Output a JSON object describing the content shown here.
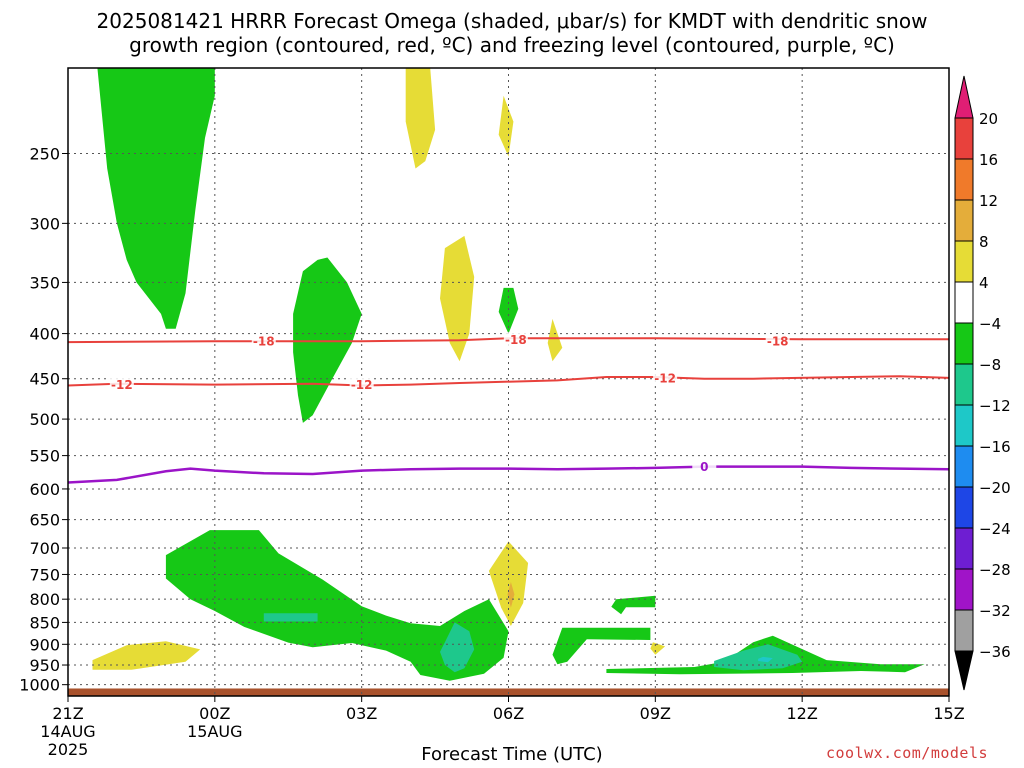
{
  "title": {
    "line1": "2025081421 HRRR Forecast Omega (shaded, μbar/s) for KMDT with dendritic snow",
    "line2": "growth region (contoured, red, ºC) and freezing level (contoured, purple, ºC)"
  },
  "x_axis_label": "Forecast Time (UTC)",
  "credit": "coolwx.com/models",
  "chart_data": {
    "type": "time-height cross section",
    "y_axis": {
      "label": "",
      "scale": "pressure",
      "range_hPa": [
        200,
        1030
      ],
      "inverted": true,
      "ticks": [
        250,
        300,
        350,
        400,
        450,
        500,
        550,
        600,
        650,
        700,
        750,
        800,
        850,
        900,
        950,
        1000
      ]
    },
    "x_axis": {
      "range_hours": [
        0,
        18
      ],
      "ticks": [
        {
          "h": 0,
          "label": "21Z",
          "sub1": "14AUG",
          "sub2": "2025"
        },
        {
          "h": 3,
          "label": "00Z",
          "sub1": "15AUG",
          "sub2": ""
        },
        {
          "h": 6,
          "label": "03Z",
          "sub1": "",
          "sub2": ""
        },
        {
          "h": 9,
          "label": "06Z",
          "sub1": "",
          "sub2": ""
        },
        {
          "h": 12,
          "label": "09Z",
          "sub1": "",
          "sub2": ""
        },
        {
          "h": 15,
          "label": "12Z",
          "sub1": "",
          "sub2": ""
        },
        {
          "h": 18,
          "label": "15Z",
          "sub1": "",
          "sub2": ""
        }
      ]
    },
    "grid": true,
    "colorbar": {
      "labels": [
        "20",
        "16",
        "12",
        "8",
        "4",
        "−4",
        "−8",
        "−12",
        "−16",
        "−20",
        "−24",
        "−28",
        "−32",
        "−36"
      ],
      "colors": [
        "#e01e74",
        "#e8413c",
        "#f07a2a",
        "#e4ad3a",
        "#e6dc36",
        "#ffffff",
        "#16c816",
        "#1ec88c",
        "#1ec8c8",
        "#1e8cf0",
        "#1e46e6",
        "#6e1ed2",
        "#a014c8",
        "#a0a0a0",
        "#000000"
      ]
    },
    "omega_regions": [
      {
        "level": "-4",
        "color": "#16c816",
        "points": [
          [
            0.6,
            200
          ],
          [
            3.0,
            200
          ],
          [
            3.0,
            215
          ],
          [
            2.8,
            240
          ],
          [
            2.6,
            290
          ],
          [
            2.4,
            360
          ],
          [
            2.2,
            395
          ],
          [
            2.0,
            395
          ],
          [
            1.9,
            380
          ],
          [
            1.4,
            350
          ],
          [
            1.2,
            330
          ],
          [
            1.0,
            300
          ],
          [
            0.8,
            260
          ],
          [
            0.6,
            200
          ]
        ]
      },
      {
        "level": "-4",
        "color": "#16c816",
        "points": [
          [
            5.1,
            330
          ],
          [
            5.3,
            328
          ],
          [
            5.7,
            350
          ],
          [
            6.0,
            380
          ],
          [
            5.8,
            410
          ],
          [
            5.4,
            450
          ],
          [
            5.0,
            495
          ],
          [
            4.8,
            505
          ],
          [
            4.7,
            470
          ],
          [
            4.6,
            420
          ],
          [
            4.6,
            380
          ],
          [
            4.8,
            340
          ],
          [
            5.1,
            330
          ]
        ]
      },
      {
        "level": "-4",
        "color": "#16c816",
        "points": [
          [
            8.9,
            355
          ],
          [
            9.1,
            355
          ],
          [
            9.2,
            375
          ],
          [
            9.0,
            400
          ],
          [
            8.8,
            378
          ],
          [
            8.9,
            355
          ]
        ]
      },
      {
        "level": "-4",
        "color": "#16c816",
        "points": [
          [
            2.0,
            713
          ],
          [
            2.9,
            668
          ],
          [
            3.9,
            668
          ],
          [
            4.3,
            710
          ],
          [
            5.2,
            760
          ],
          [
            6.0,
            815
          ],
          [
            6.5,
            835
          ],
          [
            7.0,
            852
          ],
          [
            7.6,
            858
          ],
          [
            8.1,
            825
          ],
          [
            8.6,
            800
          ],
          [
            9.0,
            870
          ],
          [
            8.9,
            932
          ],
          [
            8.5,
            972
          ],
          [
            7.8,
            990
          ],
          [
            7.2,
            975
          ],
          [
            7.0,
            942
          ],
          [
            6.5,
            915
          ],
          [
            5.8,
            897
          ],
          [
            5.0,
            907
          ],
          [
            4.5,
            896
          ],
          [
            3.6,
            860
          ],
          [
            3.0,
            825
          ],
          [
            2.5,
            800
          ],
          [
            2.0,
            758
          ],
          [
            2.0,
            713
          ]
        ]
      },
      {
        "level": "-4",
        "color": "#16c816",
        "points": [
          [
            10.1,
            862
          ],
          [
            11.9,
            862
          ],
          [
            11.9,
            890
          ],
          [
            10.6,
            888
          ],
          [
            10.2,
            942
          ],
          [
            10.0,
            948
          ],
          [
            9.9,
            925
          ],
          [
            10.1,
            862
          ]
        ]
      },
      {
        "level": "-4",
        "color": "#16c816",
        "points": [
          [
            11.2,
            800
          ],
          [
            12.0,
            793
          ],
          [
            12.0,
            817
          ],
          [
            11.4,
            817
          ],
          [
            11.3,
            832
          ],
          [
            11.1,
            816
          ],
          [
            11.2,
            800
          ]
        ]
      },
      {
        "level": "-4",
        "color": "#16c816",
        "points": [
          [
            11.0,
            960
          ],
          [
            12.8,
            955
          ],
          [
            13.4,
            942
          ],
          [
            14.0,
            895
          ],
          [
            14.4,
            880
          ],
          [
            15.5,
            938
          ],
          [
            16.6,
            948
          ],
          [
            17.5,
            948
          ],
          [
            17.1,
            968
          ],
          [
            16.2,
            965
          ],
          [
            14.8,
            970
          ],
          [
            12.5,
            973
          ],
          [
            11.0,
            970
          ],
          [
            11.0,
            960
          ]
        ]
      },
      {
        "level": "-8",
        "color": "#1ec88c",
        "points": [
          [
            4.0,
            830
          ],
          [
            5.1,
            830
          ],
          [
            5.1,
            848
          ],
          [
            4.0,
            848
          ],
          [
            4.0,
            830
          ]
        ]
      },
      {
        "level": "-8",
        "color": "#1ec88c",
        "points": [
          [
            7.7,
            895
          ],
          [
            7.9,
            850
          ],
          [
            8.2,
            870
          ],
          [
            8.3,
            912
          ],
          [
            8.1,
            958
          ],
          [
            7.9,
            968
          ],
          [
            7.7,
            950
          ],
          [
            7.6,
            918
          ],
          [
            7.7,
            895
          ]
        ]
      },
      {
        "level": "-8",
        "color": "#1ec88c",
        "points": [
          [
            13.2,
            940
          ],
          [
            13.8,
            915
          ],
          [
            14.3,
            900
          ],
          [
            14.9,
            925
          ],
          [
            15.0,
            942
          ],
          [
            14.6,
            958
          ],
          [
            13.8,
            963
          ],
          [
            13.2,
            955
          ],
          [
            13.2,
            940
          ]
        ]
      },
      {
        "level": "-12",
        "color": "#1ec8c8",
        "points": [
          [
            14.1,
            935
          ],
          [
            14.2,
            930
          ],
          [
            14.4,
            933
          ],
          [
            14.3,
            943
          ],
          [
            14.1,
            940
          ]
        ]
      },
      {
        "level": "4",
        "color": "#e6dc36",
        "points": [
          [
            6.9,
            200
          ],
          [
            7.4,
            200
          ],
          [
            7.5,
            235
          ],
          [
            7.3,
            255
          ],
          [
            7.1,
            260
          ],
          [
            6.9,
            230
          ],
          [
            6.9,
            200
          ]
        ]
      },
      {
        "level": "4",
        "color": "#e6dc36",
        "points": [
          [
            8.9,
            215
          ],
          [
            9.1,
            230
          ],
          [
            9.0,
            252
          ],
          [
            8.8,
            238
          ],
          [
            8.9,
            215
          ]
        ]
      },
      {
        "level": "4",
        "color": "#e6dc36",
        "points": [
          [
            7.7,
            320
          ],
          [
            8.1,
            310
          ],
          [
            8.3,
            345
          ],
          [
            8.2,
            400
          ],
          [
            8.0,
            430
          ],
          [
            7.8,
            410
          ],
          [
            7.6,
            365
          ],
          [
            7.7,
            320
          ]
        ]
      },
      {
        "level": "4",
        "color": "#e6dc36",
        "points": [
          [
            9.9,
            385
          ],
          [
            10.1,
            415
          ],
          [
            9.9,
            430
          ],
          [
            9.8,
            410
          ],
          [
            9.9,
            385
          ]
        ]
      },
      {
        "level": "4",
        "color": "#e6dc36",
        "points": [
          [
            9.0,
            688
          ],
          [
            9.4,
            728
          ],
          [
            9.3,
            808
          ],
          [
            9.05,
            858
          ],
          [
            8.85,
            818
          ],
          [
            8.6,
            743
          ],
          [
            9.0,
            688
          ]
        ]
      },
      {
        "level": "4",
        "color": "#e6dc36",
        "points": [
          [
            11.95,
            895
          ],
          [
            12.2,
            905
          ],
          [
            12.0,
            925
          ],
          [
            11.9,
            910
          ],
          [
            11.95,
            895
          ]
        ]
      },
      {
        "level": "4",
        "color": "#e6dc36",
        "points": [
          [
            0.5,
            938
          ],
          [
            1.2,
            902
          ],
          [
            2.0,
            893
          ],
          [
            2.7,
            912
          ],
          [
            2.4,
            942
          ],
          [
            1.3,
            962
          ],
          [
            0.5,
            962
          ],
          [
            0.5,
            938
          ]
        ]
      },
      {
        "level": "8",
        "color": "#e4ad3a",
        "points": [
          [
            9.05,
            765
          ],
          [
            9.12,
            790
          ],
          [
            9.05,
            818
          ],
          [
            8.98,
            790
          ],
          [
            9.05,
            765
          ]
        ]
      }
    ],
    "red_contours": [
      {
        "label": "-18",
        "color": "#e8413c",
        "points": [
          [
            0,
            409
          ],
          [
            3,
            408
          ],
          [
            6,
            408
          ],
          [
            8,
            407
          ],
          [
            9,
            405
          ],
          [
            10,
            405
          ],
          [
            12,
            405
          ],
          [
            15,
            406
          ],
          [
            18,
            406
          ]
        ],
        "label_at": [
          [
            4.0,
            408
          ],
          [
            9.15,
            406
          ],
          [
            14.5,
            408
          ]
        ]
      },
      {
        "label": "-12",
        "color": "#e8413c",
        "points": [
          [
            0,
            458
          ],
          [
            1,
            456
          ],
          [
            3,
            457
          ],
          [
            5,
            456
          ],
          [
            6,
            458
          ],
          [
            7,
            457
          ],
          [
            8,
            455
          ],
          [
            10,
            452
          ],
          [
            11,
            448
          ],
          [
            12,
            448
          ],
          [
            13,
            450
          ],
          [
            14,
            450
          ],
          [
            16,
            448
          ],
          [
            17,
            447
          ],
          [
            18,
            449
          ]
        ],
        "label_at": [
          [
            1.1,
            457
          ],
          [
            6.0,
            457
          ],
          [
            12.2,
            449
          ]
        ]
      }
    ],
    "purple_contours": [
      {
        "label": "0",
        "color": "#9b14c8",
        "points": [
          [
            0,
            590
          ],
          [
            1,
            586
          ],
          [
            2,
            573
          ],
          [
            2.5,
            569
          ],
          [
            3,
            572
          ],
          [
            4,
            576
          ],
          [
            5,
            577
          ],
          [
            6,
            572
          ],
          [
            7,
            570
          ],
          [
            8,
            569
          ],
          [
            9,
            569
          ],
          [
            10,
            570
          ],
          [
            11,
            569
          ],
          [
            12,
            568
          ],
          [
            13,
            566
          ],
          [
            14,
            566
          ],
          [
            15,
            566
          ],
          [
            16,
            568
          ],
          [
            17,
            569
          ],
          [
            18,
            570
          ]
        ],
        "label_at": [
          [
            13.0,
            566
          ]
        ]
      }
    ],
    "ground": {
      "from_hPa": 1010,
      "to_hPa": 1030,
      "color": "#a9522c"
    }
  }
}
